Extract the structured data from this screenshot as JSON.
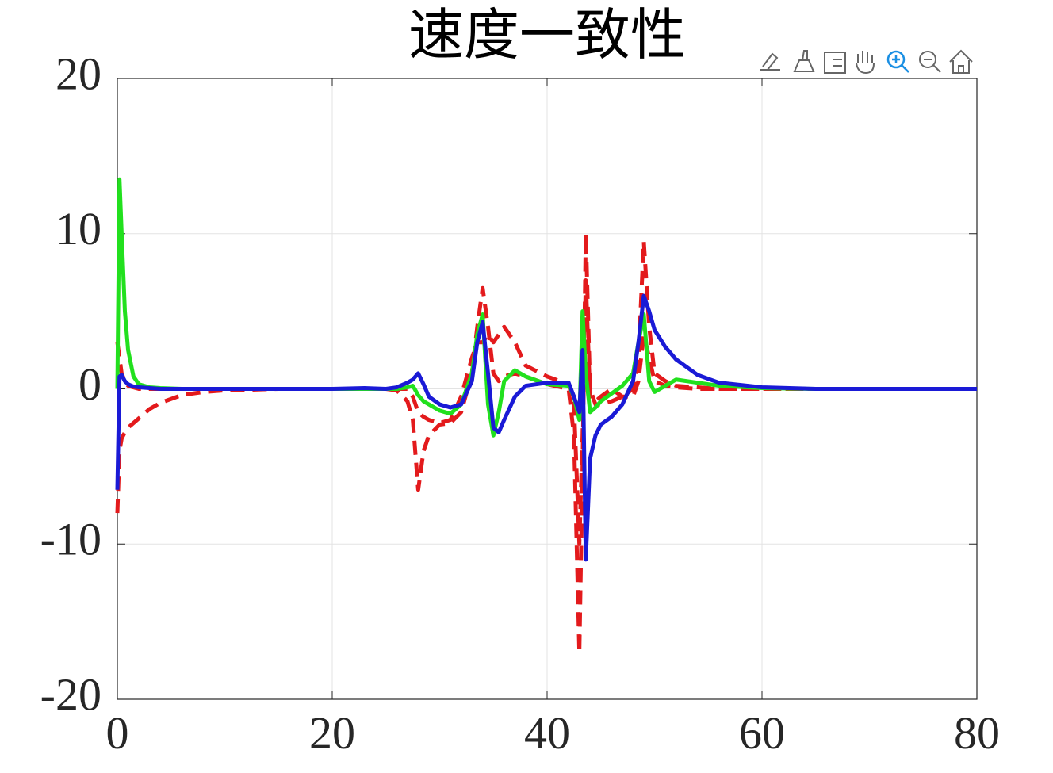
{
  "chart_data": {
    "type": "line",
    "title": "速度一致性",
    "x": [
      0,
      0.2,
      0.4,
      0.7,
      1,
      1.5,
      2,
      3,
      4,
      6,
      8,
      10,
      15,
      20,
      23,
      25,
      26,
      27,
      27.5,
      28,
      28.5,
      29,
      30,
      31,
      32,
      33,
      33.5,
      34,
      34.5,
      35,
      35.5,
      36,
      37,
      38,
      40,
      42,
      42.5,
      43,
      43.3,
      43.6,
      44,
      44.5,
      45,
      46,
      47,
      48,
      48.5,
      49,
      49.5,
      50,
      51,
      52,
      54,
      56,
      60,
      65,
      70,
      80
    ],
    "series": [
      {
        "color": "#e31a1c",
        "linestyle": "dashed",
        "values": [
          -8,
          -4,
          -3.2,
          -2.8,
          -2.5,
          -2.2,
          -1.9,
          -1.3,
          -0.9,
          -0.4,
          -0.2,
          -0.1,
          0,
          0,
          0,
          0,
          -0.1,
          -0.8,
          -2,
          -6.5,
          -4,
          -3,
          -2.3,
          -2.2,
          -1.5,
          1,
          4,
          6.5,
          4,
          1,
          0.5,
          0.8,
          1,
          0.8,
          0.3,
          0,
          -3,
          -17,
          -5,
          10,
          0,
          -1,
          -1,
          -0.8,
          -0.5,
          0,
          2,
          9.5,
          4,
          1,
          0.5,
          0.2,
          0.1,
          0,
          0,
          0,
          0,
          0
        ]
      },
      {
        "color": "#e31a1c",
        "linestyle": "dashed",
        "values": [
          3,
          2,
          1,
          0.5,
          0.2,
          0.1,
          0,
          0,
          0,
          0,
          0,
          0,
          0,
          0,
          0,
          0,
          0,
          0,
          -0.5,
          -1.5,
          -1.8,
          -2,
          -2.2,
          -2,
          -0.5,
          2,
          3,
          3,
          3.5,
          3,
          3.5,
          4,
          3,
          1.5,
          0.8,
          0.3,
          -1,
          -10,
          -3,
          7,
          -0.5,
          -0.8,
          -0.5,
          0,
          -0.5,
          -0.5,
          0.5,
          3.5,
          2,
          0.5,
          0.2,
          0.1,
          0,
          0,
          0,
          0,
          0,
          0
        ]
      },
      {
        "color": "#22e01e",
        "linestyle": "solid",
        "values": [
          0,
          13.5,
          10,
          5,
          2.5,
          0.8,
          0.3,
          0.1,
          0.05,
          0,
          0,
          0,
          0,
          0,
          0,
          0,
          0,
          0.1,
          0.2,
          -0.4,
          -0.8,
          -1,
          -1.4,
          -1.6,
          -1,
          1,
          3.5,
          4.8,
          -1,
          -3,
          -1.5,
          0.5,
          1.2,
          0.8,
          0.3,
          0.2,
          -0.5,
          -2,
          5,
          1,
          -1.5,
          -1.2,
          -0.8,
          -0.3,
          0.2,
          1,
          3,
          4.8,
          0.5,
          -0.2,
          0.2,
          0.6,
          0.4,
          0.2,
          0.05,
          0,
          0,
          0
        ]
      },
      {
        "color": "#1a1ad6",
        "linestyle": "solid",
        "values": [
          -6.5,
          0.8,
          0.9,
          0.5,
          0.3,
          0.15,
          0.1,
          0.05,
          0,
          0,
          0,
          0,
          0,
          0,
          0.05,
          0,
          0.1,
          0.4,
          0.6,
          1,
          0.3,
          -0.5,
          -1,
          -1.2,
          -1,
          0.5,
          3,
          4.3,
          1,
          -2.5,
          -2.8,
          -2,
          -0.5,
          0.2,
          0.4,
          0.4,
          -0.5,
          -1.5,
          2.5,
          -11,
          -4.5,
          -3,
          -2.3,
          -1.8,
          -1,
          0.5,
          3,
          6,
          5,
          3.8,
          2.7,
          1.9,
          0.9,
          0.4,
          0.1,
          0,
          0,
          0
        ]
      }
    ],
    "xlim": [
      0,
      80
    ],
    "ylim": [
      -20,
      20
    ],
    "xticks": [
      0,
      20,
      40,
      60,
      80
    ],
    "yticks": [
      -20,
      -10,
      0,
      10,
      20
    ],
    "grid": true
  }
}
